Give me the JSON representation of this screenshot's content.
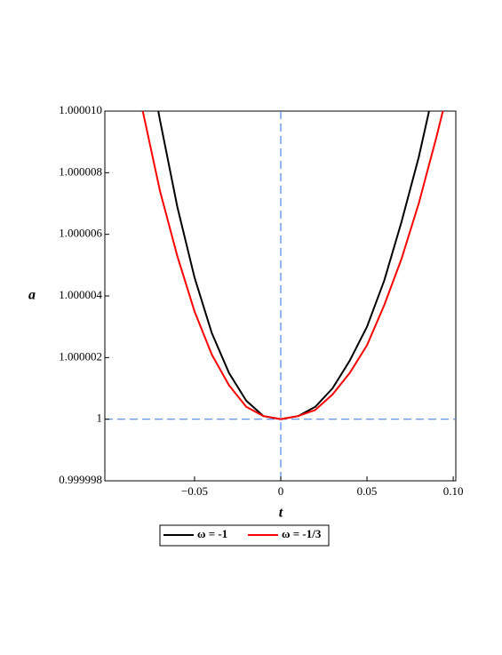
{
  "chart_data": {
    "type": "line",
    "xlabel": "t",
    "ylabel": "a",
    "xlim": [
      -0.102,
      0.1015
    ],
    "ylim": [
      0.999998,
      1.00001
    ],
    "xticks": [
      {
        "value": -0.05,
        "label": "−0.05"
      },
      0,
      0.05,
      {
        "value": 0.1,
        "label": "0.10"
      }
    ],
    "yticks": [
      0.999998,
      1,
      1.000002,
      1.000004,
      1.000006,
      1.000008,
      {
        "value": 1.00001,
        "label": "1.000010"
      }
    ],
    "vlines": [
      0
    ],
    "hlines": [
      1
    ],
    "reference_color": "#4a86e8",
    "series": [
      {
        "name": "ω = -1",
        "color": "#000000",
        "x": [
          -0.071,
          -0.07,
          -0.06,
          -0.05,
          -0.04,
          -0.03,
          -0.02,
          -0.01,
          0,
          0.01,
          0.02,
          0.03,
          0.04,
          0.05,
          0.06,
          0.07,
          0.08,
          0.086
        ],
        "values": [
          1.00001,
          1.0000097,
          1.0000069,
          1.0000046,
          1.0000028,
          1.0000015,
          1.0000006,
          1.0000001,
          1,
          1.0000001,
          1.0000004,
          1.000001,
          1.0000019,
          1.000003,
          1.0000045,
          1.0000064,
          1.0000085,
          1.00001
        ]
      },
      {
        "name": "ω = -1/3",
        "color": "#ff0000",
        "x": [
          -0.08,
          -0.07,
          -0.06,
          -0.05,
          -0.04,
          -0.03,
          -0.02,
          -0.01,
          0,
          0.01,
          0.02,
          0.03,
          0.04,
          0.05,
          0.06,
          0.07,
          0.08,
          0.09,
          0.094
        ],
        "values": [
          1.00001,
          1.0000074,
          1.0000053,
          1.0000035,
          1.0000021,
          1.0000011,
          1.0000004,
          1.0000001,
          1,
          1.0000001,
          1.0000003,
          1.0000008,
          1.0000015,
          1.0000024,
          1.0000037,
          1.0000052,
          1.000007,
          1.0000091,
          1.00001
        ]
      }
    ]
  }
}
